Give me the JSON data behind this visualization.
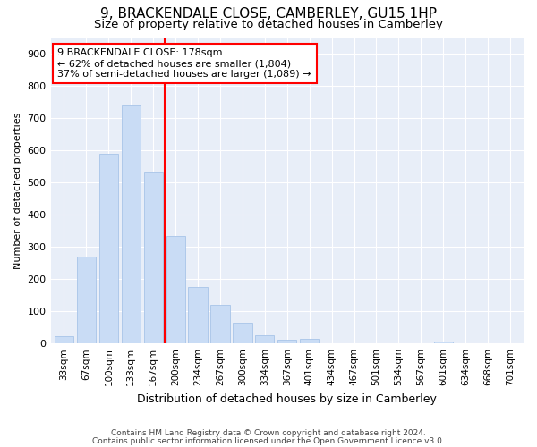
{
  "title1": "9, BRACKENDALE CLOSE, CAMBERLEY, GU15 1HP",
  "title2": "Size of property relative to detached houses in Camberley",
  "xlabel": "Distribution of detached houses by size in Camberley",
  "ylabel": "Number of detached properties",
  "categories": [
    "33sqm",
    "67sqm",
    "100sqm",
    "133sqm",
    "167sqm",
    "200sqm",
    "234sqm",
    "267sqm",
    "300sqm",
    "334sqm",
    "367sqm",
    "401sqm",
    "434sqm",
    "467sqm",
    "501sqm",
    "534sqm",
    "567sqm",
    "601sqm",
    "634sqm",
    "668sqm",
    "701sqm"
  ],
  "values": [
    22,
    270,
    590,
    740,
    535,
    335,
    175,
    120,
    65,
    25,
    12,
    15,
    0,
    0,
    0,
    0,
    0,
    5,
    0,
    0,
    0
  ],
  "bar_color": "#c9dcf5",
  "bar_edge_color": "#a8c4e8",
  "annotation_line1": "9 BRACKENDALE CLOSE: 178sqm",
  "annotation_line2": "← 62% of detached houses are smaller (1,804)",
  "annotation_line3": "37% of semi-detached houses are larger (1,089) →",
  "ylim": [
    0,
    950
  ],
  "yticks": [
    0,
    100,
    200,
    300,
    400,
    500,
    600,
    700,
    800,
    900
  ],
  "red_line_x": 4.5,
  "footer1": "Contains HM Land Registry data © Crown copyright and database right 2024.",
  "footer2": "Contains public sector information licensed under the Open Government Licence v3.0.",
  "fig_bg_color": "#ffffff",
  "plot_bg_color": "#e8eef8",
  "grid_color": "#ffffff",
  "title_fontsize": 11,
  "subtitle_fontsize": 9.5,
  "xlabel_fontsize": 9,
  "ylabel_fontsize": 8
}
